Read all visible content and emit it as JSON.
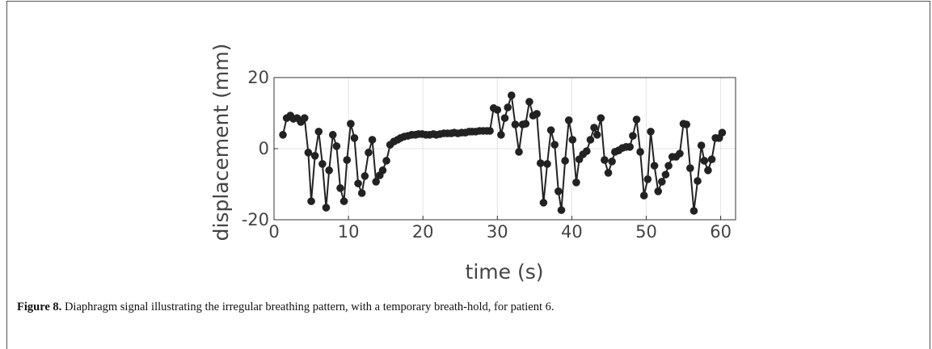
{
  "chart_data": {
    "type": "line",
    "xlabel": "time (s)",
    "ylabel": "displacement (mm)",
    "xlim": [
      0,
      62
    ],
    "ylim": [
      -20,
      20
    ],
    "xticks": [
      0,
      10,
      20,
      30,
      40,
      50,
      60
    ],
    "yticks": [
      -20,
      0,
      20
    ],
    "grid": true,
    "series": [
      {
        "color": "#222222",
        "x": [
          1.2,
          1.7,
          2.2,
          2.6,
          3.1,
          3.6,
          4.1,
          4.6,
          5.0,
          5.5,
          6.0,
          6.5,
          7.0,
          7.4,
          7.9,
          8.4,
          8.9,
          9.4,
          9.8,
          10.3,
          10.8,
          11.3,
          11.8,
          12.2,
          12.7,
          13.2,
          13.7,
          14.2,
          14.6,
          15.1,
          15.6,
          16.1,
          16.6,
          17.0,
          17.5,
          18.0,
          18.5,
          19.0,
          19.4,
          19.9,
          20.4,
          20.9,
          21.4,
          21.8,
          22.3,
          22.8,
          23.3,
          23.8,
          24.2,
          24.7,
          25.2,
          25.7,
          26.2,
          26.6,
          27.1,
          27.6,
          28.1,
          28.6,
          29.0,
          29.5,
          30.0,
          30.5,
          31.0,
          31.4,
          31.9,
          32.4,
          32.9,
          33.4,
          33.8,
          34.3,
          34.8,
          35.3,
          35.8,
          36.2,
          36.7,
          37.2,
          37.7,
          38.2,
          38.6,
          39.1,
          39.6,
          40.1,
          40.6,
          41.0,
          41.5,
          42.0,
          42.5,
          43.0,
          43.4,
          43.9,
          44.4,
          44.9,
          45.4,
          45.8,
          46.3,
          46.8,
          47.3,
          47.8,
          48.2,
          48.7,
          49.2,
          49.7,
          50.2,
          50.6,
          51.1,
          51.6,
          52.1,
          52.6,
          53.0,
          53.5,
          54.0,
          54.5,
          55.0,
          55.4,
          55.9,
          56.4,
          56.9,
          57.4,
          57.8,
          58.3,
          58.8,
          59.3,
          59.8,
          60.2
        ],
        "values": [
          3.9,
          8.6,
          9.3,
          8.4,
          8.6,
          7.5,
          8.6,
          -1.1,
          -14.8,
          -2.0,
          4.8,
          -4.3,
          -16.6,
          -6.1,
          3.9,
          0.7,
          -11.1,
          -14.8,
          -3.2,
          7.0,
          3.0,
          -9.8,
          -12.5,
          -7.7,
          -1.1,
          2.5,
          -9.3,
          -7.5,
          -6.1,
          -3.4,
          1.1,
          2.0,
          2.5,
          3.0,
          3.4,
          3.6,
          3.9,
          3.9,
          4.1,
          4.1,
          3.9,
          3.9,
          4.1,
          3.9,
          4.1,
          4.3,
          4.3,
          4.3,
          4.5,
          4.3,
          4.5,
          4.5,
          4.8,
          4.8,
          4.8,
          5.0,
          5.0,
          5.0,
          5.0,
          11.4,
          10.9,
          3.9,
          8.6,
          11.6,
          15.0,
          6.8,
          -0.9,
          6.8,
          7.0,
          13.2,
          9.3,
          9.8,
          -4.1,
          -15.2,
          -4.3,
          5.2,
          1.1,
          -12.0,
          -17.3,
          -3.4,
          8.0,
          2.5,
          -9.5,
          -3.0,
          -1.6,
          -0.7,
          2.5,
          5.9,
          3.9,
          8.6,
          -3.2,
          -6.8,
          -3.6,
          -0.9,
          -0.5,
          0.2,
          0.5,
          0.5,
          3.6,
          8.2,
          -0.9,
          -13.2,
          -8.6,
          4.8,
          -4.8,
          -12.0,
          -9.3,
          -7.3,
          -4.8,
          -2.3,
          -2.3,
          -1.4,
          7.0,
          6.8,
          -5.5,
          -17.5,
          -9.1,
          0.9,
          -3.4,
          -6.1,
          -3.0,
          3.0,
          3.0,
          4.5
        ]
      }
    ]
  },
  "caption": {
    "label": "Figure 8.",
    "text": " Diaphragm signal illustrating the irregular breathing pattern, with a temporary breath-hold, for patient 6."
  }
}
